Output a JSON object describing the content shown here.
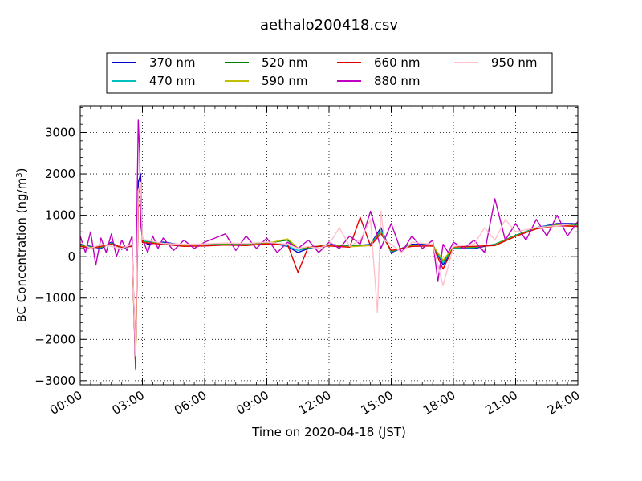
{
  "chart_data": {
    "type": "line",
    "title": "aethalo200418.csv",
    "xlabel": "Time on 2020-04-18 (JST)",
    "ylabel_main": "BC Concentration (ng/m",
    "ylabel_sup": "3",
    "ylabel_end": ")",
    "xlim": [
      "00:00",
      "24:00"
    ],
    "ylim": [
      -3100,
      3650
    ],
    "x_ticks": [
      "00:00",
      "03:00",
      "06:00",
      "09:00",
      "12:00",
      "15:00",
      "18:00",
      "21:00",
      "24:00"
    ],
    "y_ticks": [
      "−3000",
      "−2000",
      "−1000",
      "0",
      "1000",
      "2000",
      "3000"
    ],
    "y_tick_values": [
      -3000,
      -2000,
      -1000,
      0,
      1000,
      2000,
      3000
    ],
    "grid": true,
    "legend_position": "top",
    "series": [
      {
        "name": "370 nm",
        "color": "#0000cc",
        "x": [
          "00:00",
          "00:30",
          "01:00",
          "01:30",
          "02:00",
          "02:30",
          "02:40",
          "02:48",
          "02:55",
          "03:00",
          "03:15",
          "03:30",
          "04:00",
          "05:00",
          "06:00",
          "07:00",
          "08:00",
          "09:00",
          "10:00",
          "10:30",
          "11:00",
          "12:00",
          "13:00",
          "14:00",
          "14:30",
          "15:00",
          "16:00",
          "17:00",
          "17:30",
          "18:00",
          "19:00",
          "20:00",
          "21:00",
          "22:00",
          "23:00",
          "24:00"
        ],
        "values": [
          300,
          250,
          200,
          350,
          180,
          300,
          -2600,
          1800,
          2000,
          400,
          300,
          320,
          350,
          280,
          300,
          320,
          300,
          350,
          250,
          100,
          200,
          300,
          250,
          300,
          700,
          100,
          300,
          300,
          -200,
          200,
          200,
          300,
          500,
          700,
          800,
          800
        ]
      },
      {
        "name": "470 nm",
        "color": "#00bfbf",
        "x": [
          "00:00",
          "00:30",
          "01:00",
          "01:30",
          "02:00",
          "02:30",
          "02:40",
          "02:48",
          "02:55",
          "03:00",
          "04:00",
          "05:00",
          "06:00",
          "07:00",
          "08:00",
          "09:00",
          "10:00",
          "10:30",
          "11:00",
          "12:00",
          "13:00",
          "14:00",
          "14:30",
          "15:00",
          "16:00",
          "17:00",
          "17:30",
          "18:00",
          "19:00",
          "20:00",
          "21:00",
          "22:00",
          "23:00",
          "24:00"
        ],
        "values": [
          280,
          240,
          220,
          330,
          200,
          280,
          -2500,
          1500,
          1700,
          380,
          330,
          280,
          290,
          310,
          300,
          340,
          260,
          150,
          210,
          290,
          260,
          290,
          650,
          120,
          280,
          290,
          -150,
          210,
          220,
          300,
          520,
          700,
          780,
          760
        ]
      },
      {
        "name": "520 nm",
        "color": "#008000",
        "x": [
          "00:00",
          "00:30",
          "01:00",
          "01:30",
          "02:00",
          "02:30",
          "02:40",
          "02:48",
          "02:55",
          "03:00",
          "04:00",
          "05:00",
          "06:00",
          "07:00",
          "08:00",
          "09:00",
          "10:00",
          "10:30",
          "11:00",
          "12:00",
          "13:00",
          "14:00",
          "14:30",
          "15:00",
          "16:00",
          "17:00",
          "17:30",
          "18:00",
          "19:00",
          "20:00",
          "21:00",
          "22:00",
          "23:00",
          "24:00"
        ],
        "values": [
          270,
          230,
          230,
          320,
          210,
          270,
          -2600,
          1400,
          1500,
          360,
          320,
          270,
          280,
          300,
          290,
          330,
          400,
          200,
          220,
          280,
          250,
          280,
          600,
          130,
          270,
          280,
          -100,
          220,
          230,
          290,
          510,
          690,
          770,
          750
        ]
      },
      {
        "name": "590 nm",
        "color": "#bfbf00",
        "x": [
          "00:00",
          "00:30",
          "01:00",
          "01:30",
          "02:00",
          "02:30",
          "02:40",
          "02:48",
          "02:55",
          "03:00",
          "04:00",
          "05:00",
          "06:00",
          "07:00",
          "08:00",
          "09:00",
          "10:00",
          "10:30",
          "11:00",
          "12:00",
          "13:00",
          "14:00",
          "14:30",
          "15:00",
          "16:00",
          "17:00",
          "17:30",
          "18:00",
          "19:00",
          "20:00",
          "21:00",
          "22:00",
          "23:00",
          "24:00"
        ],
        "values": [
          260,
          220,
          240,
          310,
          220,
          260,
          -2750,
          1300,
          1400,
          350,
          310,
          260,
          270,
          290,
          280,
          320,
          430,
          210,
          230,
          270,
          240,
          270,
          580,
          140,
          260,
          270,
          -80,
          230,
          240,
          280,
          500,
          680,
          760,
          740
        ]
      },
      {
        "name": "660 nm",
        "color": "#e00000",
        "x": [
          "00:00",
          "00:30",
          "01:00",
          "01:30",
          "02:00",
          "02:30",
          "02:40",
          "02:48",
          "02:55",
          "03:00",
          "04:00",
          "05:00",
          "06:00",
          "07:00",
          "08:00",
          "09:00",
          "10:00",
          "10:30",
          "11:00",
          "12:00",
          "13:00",
          "13:30",
          "14:00",
          "14:30",
          "15:00",
          "16:00",
          "17:00",
          "17:30",
          "18:00",
          "19:00",
          "20:00",
          "21:00",
          "22:00",
          "23:00",
          "24:00"
        ],
        "values": [
          250,
          210,
          250,
          300,
          230,
          250,
          -2550,
          1200,
          1300,
          340,
          300,
          250,
          260,
          280,
          270,
          310,
          300,
          -380,
          240,
          260,
          230,
          950,
          260,
          560,
          150,
          250,
          260,
          -300,
          240,
          250,
          270,
          490,
          670,
          750,
          730
        ]
      },
      {
        "name": "880 nm",
        "color": "#bf00bf",
        "x": [
          "00:00",
          "00:15",
          "00:30",
          "00:45",
          "01:00",
          "01:15",
          "01:30",
          "01:45",
          "02:00",
          "02:15",
          "02:30",
          "02:40",
          "02:45",
          "02:48",
          "02:52",
          "02:55",
          "03:00",
          "03:15",
          "03:30",
          "03:45",
          "04:00",
          "04:30",
          "05:00",
          "05:30",
          "06:00",
          "06:30",
          "07:00",
          "07:30",
          "08:00",
          "08:30",
          "09:00",
          "09:30",
          "10:00",
          "10:30",
          "11:00",
          "11:30",
          "12:00",
          "12:30",
          "13:00",
          "13:30",
          "14:00",
          "14:30",
          "15:00",
          "15:30",
          "16:00",
          "16:30",
          "17:00",
          "17:15",
          "17:30",
          "17:45",
          "18:00",
          "18:30",
          "19:00",
          "19:30",
          "20:00",
          "20:30",
          "21:00",
          "21:30",
          "22:00",
          "22:30",
          "23:00",
          "23:30",
          "24:00"
        ],
        "values": [
          500,
          100,
          600,
          -200,
          450,
          100,
          550,
          0,
          400,
          150,
          500,
          -2700,
          1500,
          3300,
          2500,
          800,
          450,
          100,
          500,
          200,
          450,
          150,
          400,
          200,
          350,
          450,
          550,
          150,
          500,
          200,
          450,
          100,
          350,
          200,
          400,
          100,
          350,
          200,
          500,
          300,
          1100,
          200,
          800,
          100,
          500,
          200,
          400,
          -600,
          300,
          100,
          350,
          200,
          400,
          100,
          1400,
          400,
          800,
          400,
          900,
          500,
          1000,
          500,
          850
        ]
      },
      {
        "name": "950 nm",
        "color": "#ffc0cb",
        "x": [
          "00:00",
          "00:30",
          "01:00",
          "01:30",
          "02:00",
          "02:30",
          "02:40",
          "02:48",
          "02:55",
          "03:00",
          "04:00",
          "05:00",
          "06:00",
          "07:00",
          "08:00",
          "09:00",
          "10:00",
          "10:30",
          "11:00",
          "11:30",
          "12:00",
          "12:30",
          "13:00",
          "13:30",
          "14:00",
          "14:20",
          "14:30",
          "14:40",
          "15:00",
          "15:30",
          "16:00",
          "17:00",
          "17:30",
          "18:00",
          "19:00",
          "19:30",
          "20:00",
          "20:30",
          "21:00",
          "22:00",
          "23:00",
          "24:00"
        ],
        "values": [
          350,
          200,
          300,
          250,
          200,
          300,
          -2400,
          1600,
          1800,
          420,
          320,
          300,
          310,
          330,
          320,
          350,
          300,
          200,
          250,
          200,
          300,
          700,
          250,
          400,
          900,
          -1350,
          1100,
          400,
          300,
          100,
          350,
          300,
          -700,
          250,
          300,
          700,
          400,
          900,
          600,
          700,
          750,
          800
        ]
      }
    ]
  }
}
